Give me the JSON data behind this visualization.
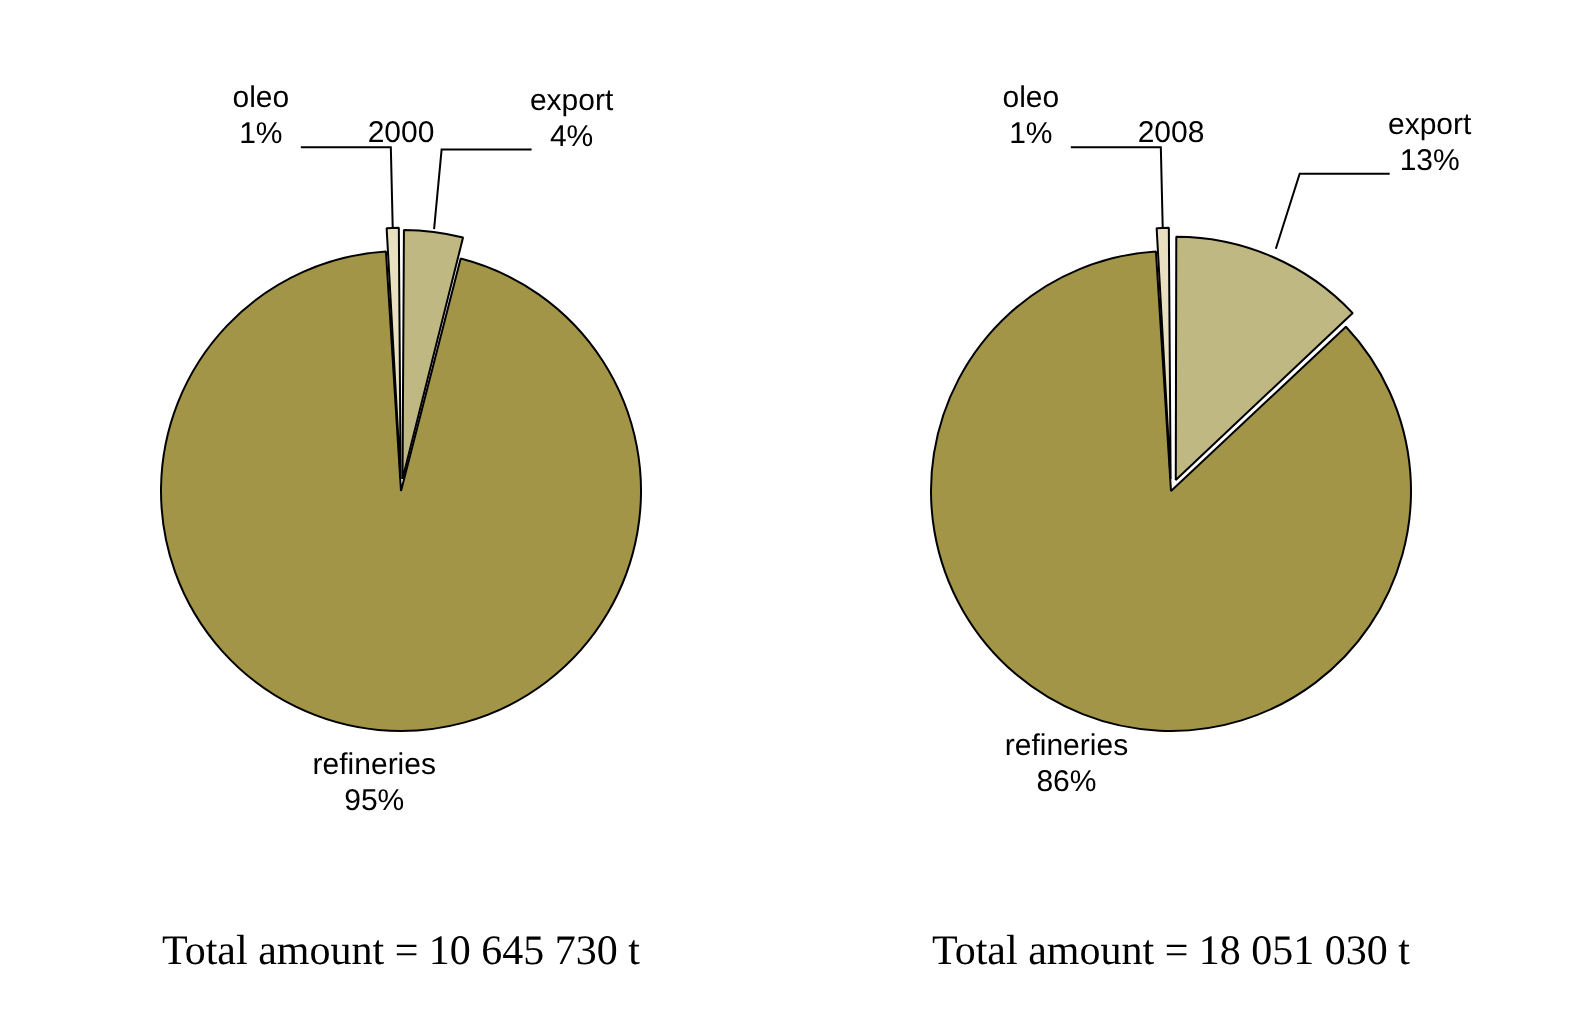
{
  "chart_data": [
    {
      "type": "pie",
      "title": "2000",
      "categories": [
        "export",
        "refineries",
        "oleo"
      ],
      "values": [
        4,
        95,
        1
      ],
      "value_labels": [
        "4%",
        "95%",
        "1%"
      ],
      "colors": [
        "#bfb882",
        "#a39548",
        "#e8e0c0"
      ],
      "legend": false,
      "annotations": [
        "Total amount = 10 645 730 t"
      ]
    },
    {
      "type": "pie",
      "title": "2008",
      "categories": [
        "export",
        "refineries",
        "oleo"
      ],
      "values": [
        13,
        86,
        1
      ],
      "value_labels": [
        "13%",
        "86%",
        "1%"
      ],
      "colors": [
        "#bfb882",
        "#a39548",
        "#e8e0c0"
      ],
      "legend": false,
      "annotations": [
        "Total amount = 18 051 030 t"
      ]
    }
  ]
}
